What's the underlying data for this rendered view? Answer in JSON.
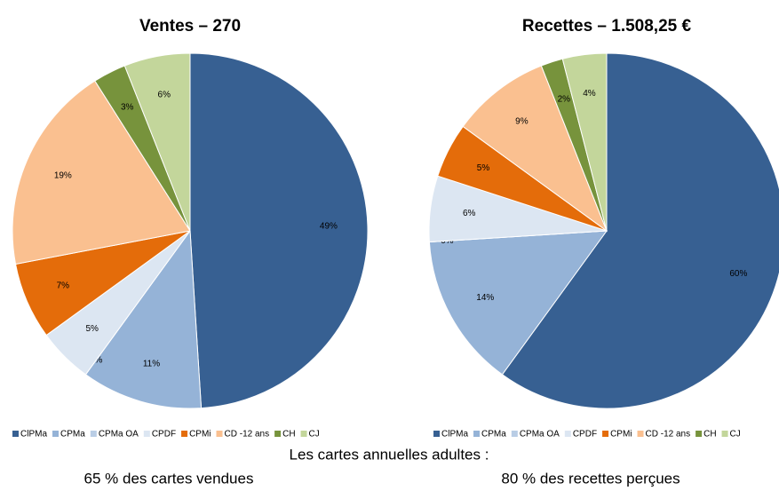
{
  "chart_data": [
    {
      "type": "pie",
      "title": "Ventes – 270",
      "categories": [
        "ClPMa",
        "CPMa",
        "CPMa OA",
        "CPDF",
        "CPMi",
        "CD -12 ans",
        "CH",
        "CJ"
      ],
      "values": [
        49,
        11,
        0,
        5,
        7,
        19,
        3,
        6
      ],
      "value_labels": [
        "49%",
        "11%",
        "0%",
        "5%",
        "7%",
        "19%",
        "3%",
        "6%"
      ],
      "colors": [
        "#376092",
        "#95b3d7",
        "#b9cde5",
        "#dce6f2",
        "#e46c0a",
        "#fac090",
        "#77933c",
        "#c3d69b"
      ],
      "legend": "bottom"
    },
    {
      "type": "pie",
      "title": "Recettes – 1.508,25 €",
      "categories": [
        "ClPMa",
        "CPMa",
        "CPMa OA",
        "CPDF",
        "CPMi",
        "CD -12 ans",
        "CH",
        "CJ"
      ],
      "values": [
        60,
        14,
        0,
        6,
        5,
        9,
        2,
        4
      ],
      "value_labels": [
        "60%",
        "14%",
        "0%",
        "6%",
        "5%",
        "9%",
        "2%",
        "4%"
      ],
      "colors": [
        "#376092",
        "#95b3d7",
        "#b9cde5",
        "#dce6f2",
        "#e46c0a",
        "#fac090",
        "#77933c",
        "#c3d69b"
      ],
      "legend": "bottom"
    }
  ],
  "footer": {
    "heading": "Les cartes annuelles adultes :",
    "left": "65 % des cartes vendues",
    "right": "80 % des recettes perçues"
  }
}
